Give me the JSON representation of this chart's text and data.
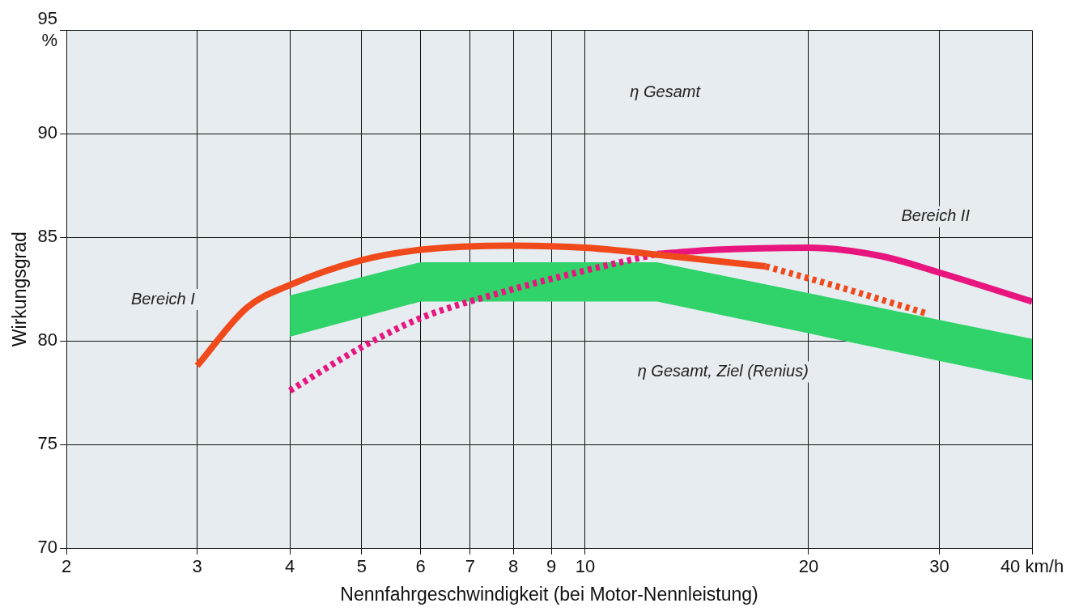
{
  "chart_data": {
    "type": "line",
    "xlabel": "Nennfahrgeschwindigkeit (bei Motor-Nennleistung)",
    "ylabel": "Wirkungsgrad",
    "log": "x",
    "xlim": [
      2,
      40
    ],
    "ylim": [
      70,
      95
    ],
    "xticks": [
      2,
      3,
      4,
      5,
      6,
      7,
      8,
      9,
      10,
      20,
      30,
      {
        "value": 40,
        "label": "40 km/h"
      }
    ],
    "yticks": [
      70,
      75,
      80,
      85,
      90,
      {
        "value": 95,
        "label": "95\n%"
      }
    ],
    "grid": true,
    "legend": false,
    "series": [
      {
        "color": "#2fd36a",
        "x": [
          4,
          6,
          12.5,
          40
        ],
        "values": [
          null,
          null,
          null,
          null
        ],
        "upper": [
          82.2,
          83.8,
          83.8,
          80.1
        ],
        "lower": [
          80.2,
          81.9,
          81.9,
          78.1
        ]
      },
      {
        "color": "#f04a1c",
        "line_style": "solid",
        "x": [
          3,
          3.5,
          4,
          5,
          6,
          8,
          10,
          13,
          17.5
        ],
        "values": [
          78.8,
          81.6,
          82.7,
          83.9,
          84.4,
          84.6,
          84.5,
          84.1,
          83.6
        ]
      },
      {
        "color": "#f04a1c",
        "line_style": "dotted",
        "x": [
          17.5,
          22,
          29
        ],
        "values": [
          83.6,
          82.6,
          81.3
        ]
      },
      {
        "color": "#e8157f",
        "line_style": "dotted",
        "x": [
          4,
          5,
          6,
          8,
          10,
          12.5
        ],
        "values": [
          77.6,
          79.7,
          81.1,
          82.5,
          83.4,
          84.2
        ]
      },
      {
        "color": "#e8157f",
        "line_style": "solid",
        "x": [
          12.5,
          15,
          20,
          25,
          30,
          40
        ],
        "values": [
          84.2,
          84.4,
          84.5,
          84.1,
          83.3,
          81.9
        ]
      }
    ],
    "annotations": [
      "η Gesamt",
      "Bereich I",
      "Bereich II",
      "η Gesamt, Ziel (Renius)"
    ]
  }
}
